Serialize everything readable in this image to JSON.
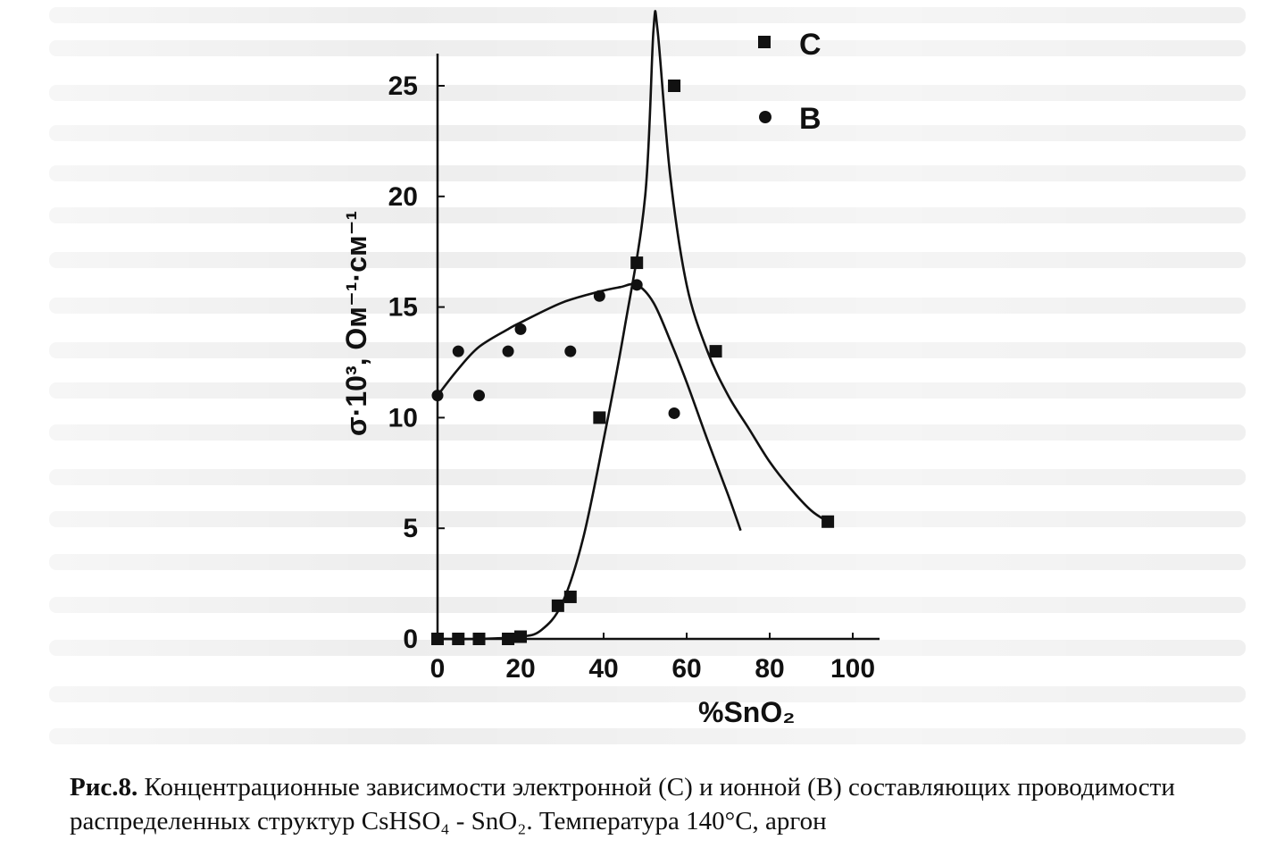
{
  "chart_data": {
    "type": "scatter",
    "xlabel": "%SnO₂",
    "ylabel": "σ·10³, Ом⁻¹·см⁻¹",
    "xlim": [
      0,
      100
    ],
    "ylim": [
      0,
      25
    ],
    "x_ticks": [
      "0",
      "20",
      "40",
      "60",
      "80",
      "100"
    ],
    "y_ticks": [
      "0",
      "5",
      "10",
      "15",
      "20",
      "25"
    ],
    "grid": false,
    "legend_position": "top-right",
    "series": [
      {
        "name": "C",
        "marker": "square",
        "points": [
          [
            0,
            0
          ],
          [
            5,
            0
          ],
          [
            10,
            0
          ],
          [
            17,
            0
          ],
          [
            20,
            0.1
          ],
          [
            29,
            1.5
          ],
          [
            32,
            1.9
          ],
          [
            39,
            10
          ],
          [
            48,
            17
          ],
          [
            57,
            25
          ],
          [
            67,
            13
          ],
          [
            94,
            5.3
          ]
        ],
        "curve": [
          [
            0,
            0
          ],
          [
            10,
            0
          ],
          [
            20,
            0.1
          ],
          [
            25,
            0.4
          ],
          [
            30,
            1.6
          ],
          [
            35,
            4.5
          ],
          [
            40,
            9
          ],
          [
            45,
            14
          ],
          [
            50,
            20
          ],
          [
            52,
            27.5
          ],
          [
            53,
            27.5
          ],
          [
            56,
            21
          ],
          [
            60,
            16
          ],
          [
            65,
            13
          ],
          [
            70,
            11
          ],
          [
            75,
            9.5
          ],
          [
            80,
            8
          ],
          [
            85,
            6.8
          ],
          [
            90,
            5.8
          ],
          [
            94,
            5.3
          ]
        ]
      },
      {
        "name": "B",
        "marker": "circle",
        "points": [
          [
            0,
            11
          ],
          [
            5,
            13
          ],
          [
            10,
            11
          ],
          [
            17,
            13
          ],
          [
            20,
            14
          ],
          [
            32,
            13
          ],
          [
            39,
            15.5
          ],
          [
            48,
            16
          ],
          [
            57,
            10.2
          ]
        ],
        "curve": [
          [
            0,
            11
          ],
          [
            5,
            12.2
          ],
          [
            10,
            13.2
          ],
          [
            17,
            14
          ],
          [
            20,
            14.3
          ],
          [
            30,
            15.2
          ],
          [
            39,
            15.7
          ],
          [
            44,
            15.9
          ],
          [
            48,
            16
          ],
          [
            52,
            15.2
          ],
          [
            56,
            13.5
          ],
          [
            60,
            11.6
          ],
          [
            65,
            9
          ],
          [
            70,
            6.5
          ],
          [
            73,
            4.9
          ]
        ]
      }
    ]
  },
  "caption": {
    "label": "Рис.8.",
    "text": " Концентрационные зависимости электронной (C) и ионной (B) составляющих проводимости распределенных структур CsHSO₄ - SnO₂. Температура 140°C, аргон"
  },
  "colors": {
    "ink": "#111111",
    "background": "#ffffff"
  }
}
